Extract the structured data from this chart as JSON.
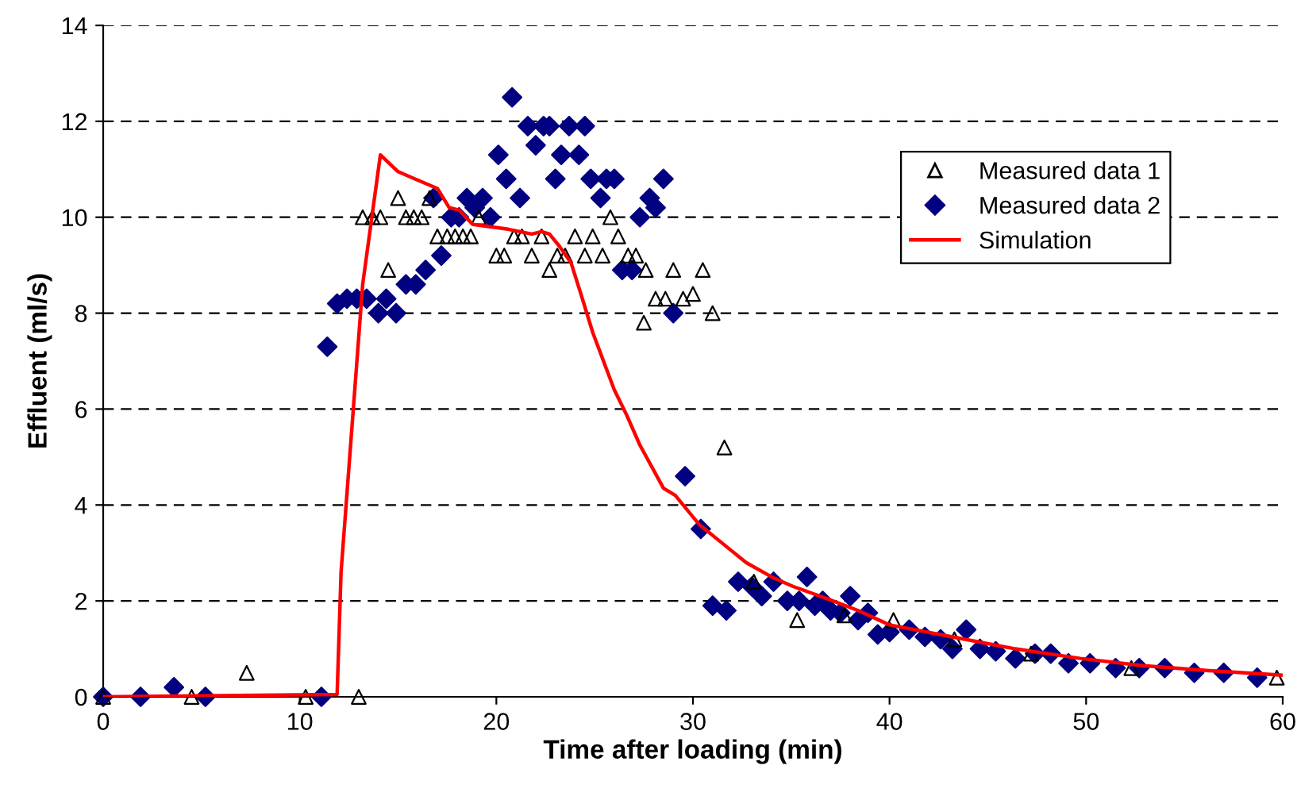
{
  "chart_data": {
    "type": "scatter",
    "xlabel": "Time after loading (min)",
    "ylabel": "Effluent (ml/s)",
    "xlim": [
      0,
      60
    ],
    "ylim": [
      0,
      14
    ],
    "xticks": [
      0,
      10,
      20,
      30,
      40,
      50,
      60
    ],
    "yticks": [
      0,
      2,
      4,
      6,
      8,
      10,
      12,
      14
    ],
    "grid": "y",
    "legend": "top right",
    "series": [
      {
        "name": "Measured data 1",
        "marker": "triangle",
        "color": "#000000",
        "x": [
          0,
          4.5,
          7.3,
          10.3,
          13,
          13.2,
          13.7,
          14.1,
          14.5,
          15,
          15.4,
          15.8,
          16.2,
          16.6,
          17,
          17.5,
          17.9,
          18.3,
          18.7,
          19.1,
          20,
          20.4,
          20.9,
          21.3,
          21.8,
          22.3,
          22.7,
          23.1,
          23.5,
          24,
          24.5,
          24.9,
          25.4,
          25.8,
          26.2,
          26.7,
          27.1,
          27.5,
          27.6,
          28.1,
          28.6,
          29,
          29.5,
          30,
          30.5,
          31,
          31.6,
          33.1,
          35.3,
          37.7,
          40.2,
          43.3,
          47.2,
          52.3,
          59.7
        ],
        "values": [
          0,
          0,
          0.5,
          0,
          0,
          10,
          10,
          10,
          8.9,
          10.4,
          10,
          10,
          10,
          10.4,
          9.6,
          9.6,
          9.6,
          9.6,
          9.6,
          10,
          9.2,
          9.2,
          9.6,
          9.6,
          9.2,
          9.6,
          8.9,
          9.2,
          9.2,
          9.6,
          9.2,
          9.6,
          9.2,
          10,
          9.6,
          9.2,
          9.2,
          7.8,
          8.9,
          8.3,
          8.3,
          8.9,
          8.3,
          8.4,
          8.9,
          8,
          5.2,
          2.4,
          1.6,
          1.7,
          1.6,
          1.2,
          0.9,
          0.6,
          0.4
        ]
      },
      {
        "name": "Measured data 2",
        "marker": "diamond",
        "color": "#000080",
        "x": [
          0,
          1.9,
          3.6,
          5.2,
          11.1,
          11.4,
          11.9,
          12.4,
          12.9,
          13.4,
          14,
          14.4,
          14.9,
          15.4,
          15.9,
          16.4,
          16.8,
          17.2,
          17.7,
          18.1,
          18.5,
          18.9,
          19.3,
          19.7,
          20.1,
          20.5,
          20.8,
          21.2,
          21.6,
          22,
          22.4,
          22.7,
          23,
          23.3,
          23.7,
          24.2,
          24.5,
          24.8,
          25.3,
          25.6,
          26,
          26.4,
          26.9,
          27.3,
          27.8,
          28.1,
          28.5,
          29,
          29.6,
          30.4,
          31,
          31.7,
          32.3,
          33,
          33.5,
          34.1,
          34.8,
          35.4,
          35.8,
          36.2,
          36.6,
          37,
          37.5,
          38,
          38.4,
          38.9,
          39.4,
          40,
          41,
          41.8,
          42.6,
          43.2,
          43.9,
          44.6,
          45.4,
          46.4,
          47.4,
          48.2,
          49.1,
          50.2,
          51.5,
          52.7,
          54,
          55.5,
          57,
          58.7
        ],
        "values": [
          0,
          0,
          0.2,
          0,
          0,
          7.3,
          8.2,
          8.3,
          8.3,
          8.3,
          8,
          8.3,
          8,
          8.6,
          8.6,
          8.9,
          10.4,
          9.2,
          10,
          10,
          10.4,
          10.2,
          10.4,
          10,
          11.3,
          10.8,
          12.5,
          10.4,
          11.9,
          11.5,
          11.9,
          11.9,
          10.8,
          11.3,
          11.9,
          11.3,
          11.9,
          10.8,
          10.4,
          10.8,
          10.8,
          8.9,
          8.9,
          10,
          10.4,
          10.2,
          10.8,
          8,
          4.6,
          3.5,
          1.9,
          1.8,
          2.4,
          2.3,
          2.1,
          2.4,
          2,
          2,
          2.5,
          1.9,
          2,
          1.8,
          1.75,
          2.1,
          1.6,
          1.75,
          1.3,
          1.35,
          1.4,
          1.25,
          1.2,
          1,
          1.4,
          1,
          0.95,
          0.8,
          0.9,
          0.9,
          0.7,
          0.7,
          0.6,
          0.6,
          0.6,
          0.5,
          0.5,
          0.4
        ]
      },
      {
        "name": "Simulation",
        "type": "line",
        "marker": "none",
        "line_style": "solid",
        "color": "#ff0000",
        "x": [
          0,
          11.9,
          12.1,
          13.2,
          14.1,
          15,
          17,
          17.6,
          18.1,
          18.8,
          20.6,
          21.8,
          22.3,
          22.7,
          23.2,
          23.8,
          24.3,
          24.9,
          26,
          26.6,
          27.3,
          28.5,
          29.1,
          30.3,
          31.5,
          32.7,
          34,
          35.1,
          36.8,
          38.4,
          40,
          43.2,
          46.4,
          49.7,
          52.9,
          56.1,
          60
        ],
        "values": [
          0,
          0.05,
          2.6,
          8.6,
          11.3,
          10.95,
          10.6,
          10.2,
          10.15,
          9.85,
          9.75,
          9.65,
          9.7,
          9.65,
          9.4,
          9.05,
          8.4,
          7.6,
          6.4,
          5.9,
          5.25,
          4.35,
          4.2,
          3.6,
          3.2,
          2.8,
          2.5,
          2.3,
          2.05,
          1.8,
          1.5,
          1.25,
          1,
          0.8,
          0.65,
          0.55,
          0.45
        ]
      }
    ]
  }
}
